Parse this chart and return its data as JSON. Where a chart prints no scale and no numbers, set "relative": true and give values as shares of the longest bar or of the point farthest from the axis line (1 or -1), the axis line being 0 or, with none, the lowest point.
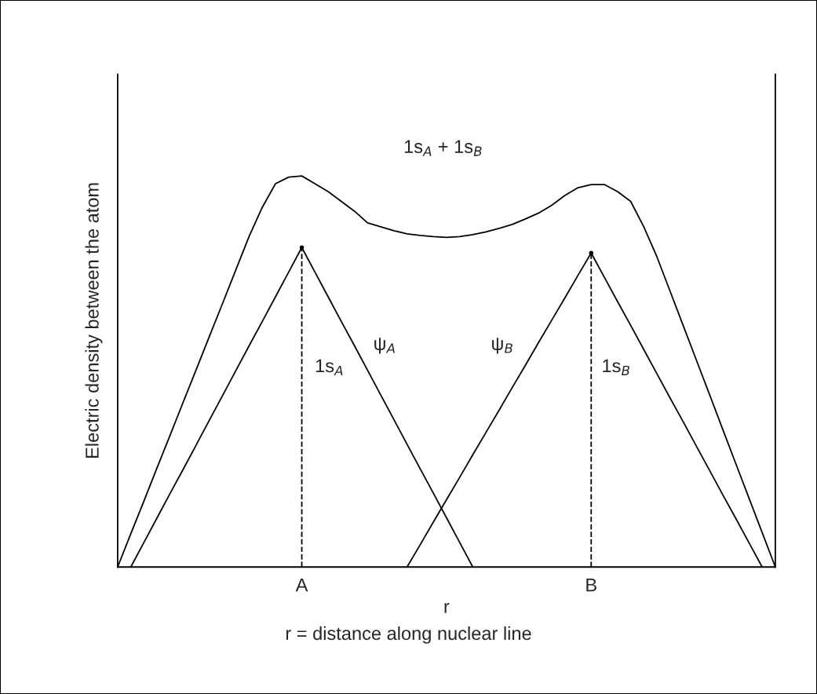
{
  "chart_data": {
    "type": "line",
    "relative": true,
    "ylabel": "Electric density between the atom",
    "xlabel": "r",
    "marker": "none",
    "line_style": "solid",
    "categories": [
      null,
      null,
      null,
      null,
      null,
      null,
      null,
      null,
      null,
      null,
      null,
      null,
      null,
      null,
      "A",
      null,
      null,
      null,
      null,
      null,
      null,
      null,
      null,
      null,
      null,
      null,
      null,
      null,
      null,
      null,
      null,
      null,
      null,
      null,
      null,
      null,
      "B",
      null,
      null,
      null,
      null,
      null,
      null,
      null,
      null,
      null,
      null,
      null,
      null,
      null,
      null
    ],
    "series": [
      {
        "color": "#000000",
        "values": [
          0,
          0.085,
          0.169,
          0.254,
          0.338,
          0.423,
          0.507,
          0.592,
          0.676,
          0.761,
          0.846,
          0.92,
          0.98,
          0.997,
          1.0,
          0.98,
          0.96,
          0.935,
          0.91,
          0.88,
          0.87,
          0.86,
          0.852,
          0.848,
          0.845,
          0.843,
          0.845,
          0.85,
          0.857,
          0.866,
          0.876,
          0.89,
          0.905,
          0.925,
          0.95,
          0.97,
          0.978,
          0.978,
          0.96,
          0.935,
          0.87,
          0.793,
          0.705,
          0.617,
          0.529,
          0.441,
          0.352,
          0.264,
          0.176,
          0.088,
          0
        ]
      },
      {
        "color": "#000000",
        "values": [
          null,
          0,
          0.063,
          0.126,
          0.189,
          0.251,
          0.314,
          0.377,
          0.44,
          0.503,
          0.566,
          0.628,
          0.691,
          0.754,
          0.817,
          0.754,
          0.691,
          0.628,
          0.566,
          0.503,
          0.44,
          0.377,
          0.314,
          0.251,
          0.189,
          0.126,
          0.063,
          0,
          null,
          null,
          null,
          null,
          null,
          null,
          null,
          null,
          null,
          null,
          null,
          null,
          null,
          null,
          null,
          null,
          null,
          null,
          null,
          null,
          null,
          null,
          null
        ]
      },
      {
        "color": "#000000",
        "values": [
          null,
          null,
          null,
          null,
          null,
          null,
          null,
          null,
          null,
          null,
          null,
          null,
          null,
          null,
          null,
          null,
          null,
          null,
          null,
          null,
          null,
          null,
          0,
          0.057,
          0.115,
          0.172,
          0.229,
          0.287,
          0.344,
          0.401,
          0.459,
          0.516,
          0.574,
          0.631,
          0.688,
          0.746,
          0.803,
          0.741,
          0.679,
          0.618,
          0.556,
          0.494,
          0.432,
          0.371,
          0.309,
          0.247,
          0.185,
          0.124,
          0.062,
          0,
          null
        ]
      },
      {
        "type": "lollipop",
        "color": "#000000",
        "line_style": "dashed",
        "marker": "circle",
        "values": [
          null,
          null,
          null,
          null,
          null,
          null,
          null,
          null,
          null,
          null,
          null,
          null,
          null,
          null,
          0.817,
          null,
          null,
          null,
          null,
          null,
          null,
          null,
          null,
          null,
          null,
          null,
          null,
          null,
          null,
          null,
          null,
          null,
          null,
          null,
          null,
          null,
          0.803,
          null,
          null,
          null,
          null,
          null,
          null,
          null,
          null,
          null,
          null,
          null,
          null,
          null,
          null
        ]
      }
    ],
    "annotations": [
      "1s$_{A}$ + 1s$_{B}$",
      "ψ$_{A}$",
      "ψ$_{B}$",
      "1s$_{A}$",
      "1s$_{B}$",
      "r = distance along nuclear line"
    ]
  }
}
